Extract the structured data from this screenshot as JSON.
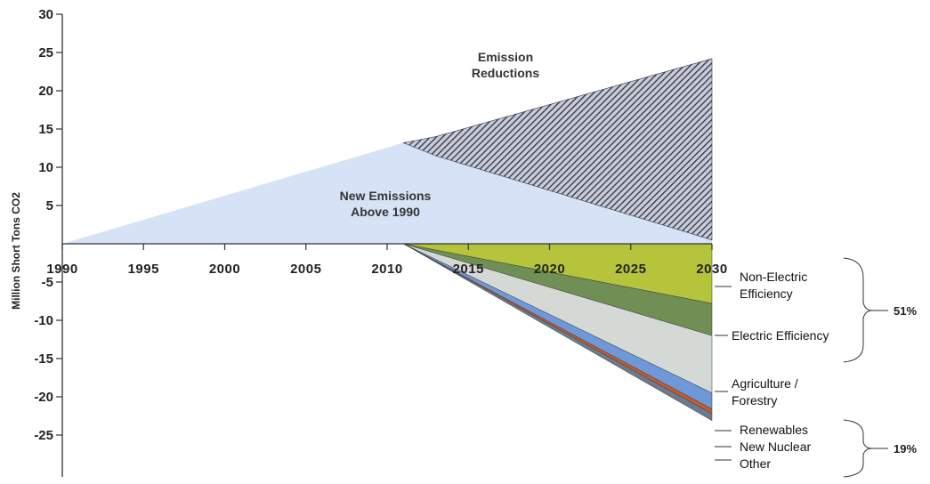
{
  "chart_data": {
    "type": "area",
    "ylabel": "Million Short Tons CO2",
    "ylim": [
      -25,
      30
    ],
    "xlim": [
      1990,
      2030
    ],
    "x_ticks": [
      "1990",
      "1995",
      "2000",
      "2005",
      "2010",
      "2015",
      "2020",
      "2025",
      "2030"
    ],
    "y_ticks": [
      "30",
      "25",
      "20",
      "15",
      "10",
      "5",
      "-5",
      "-10",
      "-15",
      "-20",
      "-25"
    ],
    "grid": false,
    "emissions_growth": {
      "x": [
        1990,
        2011,
        2013,
        2030
      ],
      "baseline": [
        0,
        13.2,
        14.0,
        24.2
      ],
      "with_reductions": [
        0,
        13.2,
        11.5,
        0.5
      ]
    },
    "reduction_wedges": {
      "x": [
        2011,
        2030
      ],
      "series": [
        {
          "name": "Non-Electric Efficiency",
          "values": [
            0,
            -7.8
          ],
          "color": "#b5c43a"
        },
        {
          "name": "Electric Efficiency",
          "values": [
            0,
            -4.2
          ],
          "color": "#6f8f55"
        },
        {
          "name": "Agriculture / Forestry",
          "values": [
            0,
            -7.5
          ],
          "color": "#d5d9d6"
        },
        {
          "name": "Renewables",
          "values": [
            0,
            -2.1
          ],
          "color": "#6f98d8"
        },
        {
          "name": "New Nuclear",
          "values": [
            0,
            -0.6
          ],
          "color": "#c85a2c"
        },
        {
          "name": "Other",
          "values": [
            0,
            -0.9
          ],
          "color": "#6b7a8e"
        }
      ]
    },
    "annotations": {
      "emission_reductions": [
        "Emission",
        "Reductions"
      ],
      "new_emissions": [
        "New Emissions",
        "Above 1990"
      ]
    },
    "legend_labels": {
      "non_electric": [
        "Non-Electric",
        "Efficiency"
      ],
      "electric": [
        "Electric Efficiency"
      ],
      "agriculture": [
        "Agriculture /",
        "Forestry"
      ],
      "renewables": [
        "Renewables"
      ],
      "nuclear": [
        "New Nuclear"
      ],
      "other": [
        "Other"
      ]
    },
    "group_percentages": {
      "efficiency_group": "51%",
      "supply_group": "19%"
    },
    "colors": {
      "new_emissions": "#d6e3f6",
      "reductions_hatch": "#2f3448",
      "axis": "#333333"
    }
  }
}
